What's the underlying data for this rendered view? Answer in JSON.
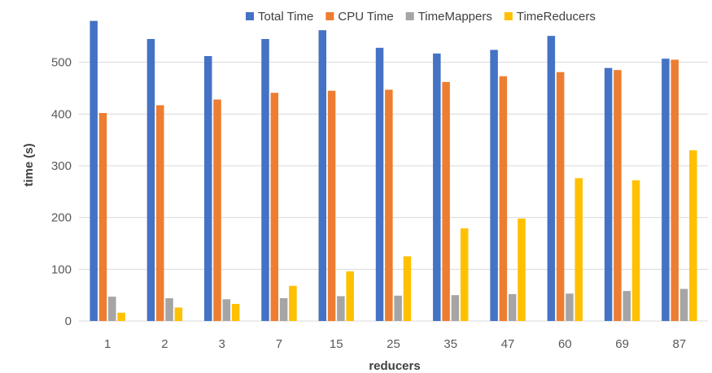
{
  "chart_data": {
    "type": "bar",
    "title": "",
    "xlabel": "reducers",
    "ylabel": "time (s)",
    "ylim": [
      0,
      600
    ],
    "yticks": [
      0,
      100,
      200,
      300,
      400,
      500
    ],
    "grid": true,
    "legend_position": "top",
    "categories": [
      "1",
      "2",
      "3",
      "7",
      "15",
      "25",
      "35",
      "47",
      "60",
      "69",
      "87"
    ],
    "series": [
      {
        "name": "Total Time",
        "color": "#4472C4",
        "values": [
          580,
          545,
          512,
          545,
          562,
          528,
          517,
          524,
          551,
          489,
          507
        ]
      },
      {
        "name": "CPU Time",
        "color": "#ED7D31",
        "values": [
          402,
          417,
          428,
          441,
          445,
          447,
          462,
          473,
          481,
          485,
          505
        ]
      },
      {
        "name": "TimeMappers",
        "color": "#A5A5A5",
        "values": [
          47,
          44,
          42,
          44,
          48,
          49,
          50,
          52,
          53,
          58,
          62
        ]
      },
      {
        "name": "TimeReducers",
        "color": "#FFC000",
        "values": [
          16,
          26,
          33,
          68,
          96,
          125,
          179,
          198,
          276,
          272,
          330
        ]
      }
    ]
  }
}
